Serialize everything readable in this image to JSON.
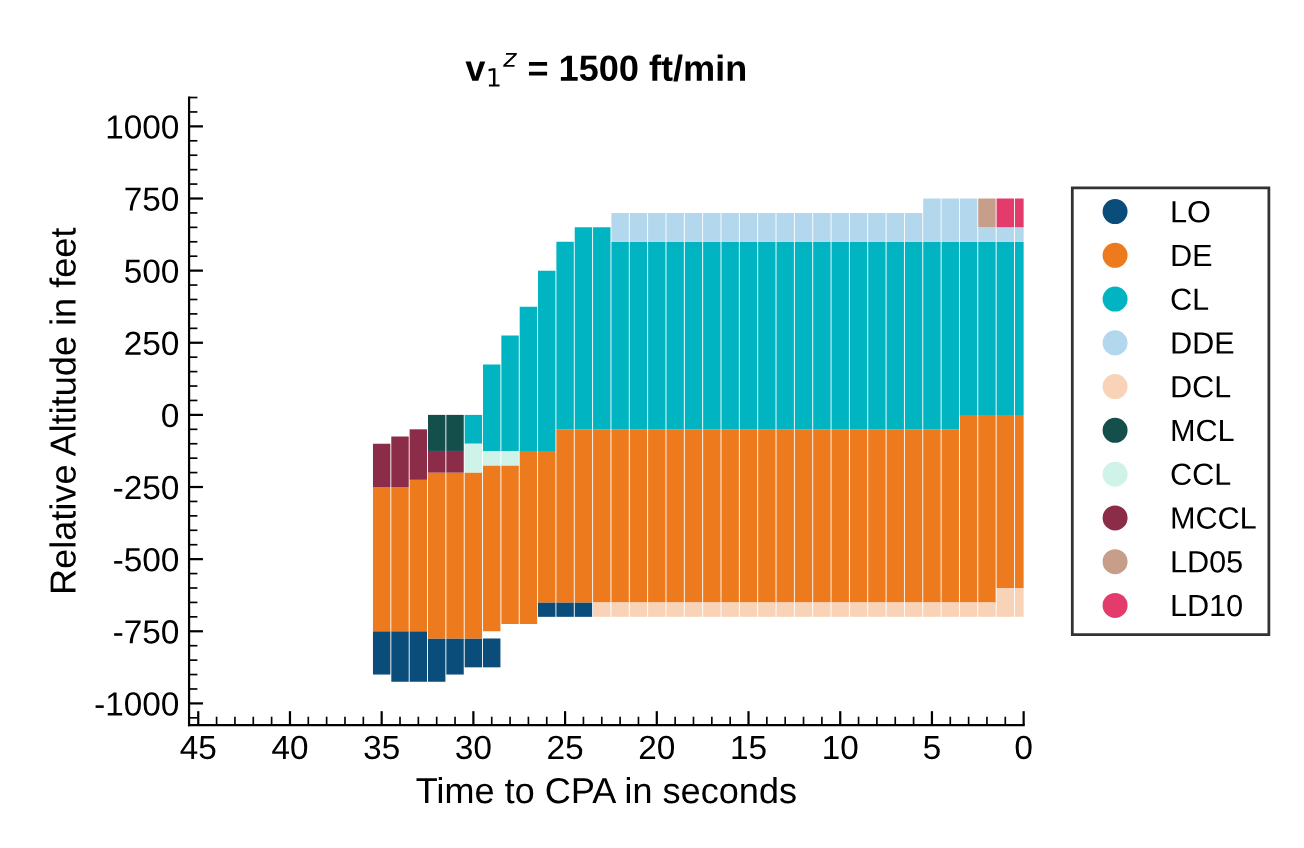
{
  "chart_data": {
    "type": "bar",
    "title": "v$_{1}$$^{z}$ = 1500 ft/min",
    "xlabel": "Time to CPA in seconds",
    "ylabel": "Relative Altitude in feet",
    "xlim": [
      45.5,
      0
    ],
    "xticks": [
      45,
      40,
      35,
      30,
      25,
      20,
      15,
      10,
      5,
      0
    ],
    "ylim": [
      -1075,
      1100
    ],
    "yticks": [
      -1000,
      -750,
      -500,
      -250,
      0,
      250,
      500,
      750,
      1000
    ],
    "grid": false,
    "legend": "right",
    "marker": "circle",
    "series": [
      {
        "name": "LO",
        "color": "#0a4d7a",
        "x": [
          35,
          34,
          33,
          32,
          31,
          30,
          29,
          26,
          25,
          24
        ],
        "base": [
          -900,
          -925,
          -925,
          -925,
          -900,
          -875,
          -875,
          -700,
          -700,
          -700
        ],
        "values": [
          150,
          175,
          175,
          150,
          125,
          100,
          100,
          50,
          50,
          50
        ]
      },
      {
        "name": "DE",
        "color": "#ee7a1e",
        "x": [
          35,
          34,
          33,
          32,
          31,
          30,
          29,
          28,
          27,
          26,
          25,
          24,
          23,
          22,
          21,
          20,
          19,
          18,
          17,
          16,
          15,
          14,
          13,
          12,
          11,
          10,
          9,
          8,
          7,
          6,
          5,
          4,
          3,
          2,
          1,
          0
        ],
        "base": [
          -750,
          -750,
          -750,
          -775,
          -775,
          -775,
          -750,
          -725,
          -725,
          -650,
          -650,
          -650,
          -650,
          -650,
          -650,
          -650,
          -650,
          -650,
          -650,
          -650,
          -650,
          -650,
          -650,
          -650,
          -650,
          -650,
          -650,
          -650,
          -650,
          -650,
          -650,
          -650,
          -650,
          -650,
          -600,
          -600
        ],
        "values": [
          500,
          500,
          525,
          575,
          575,
          575,
          575,
          550,
          600,
          525,
          600,
          600,
          600,
          600,
          600,
          600,
          600,
          600,
          600,
          600,
          600,
          600,
          600,
          600,
          600,
          600,
          600,
          600,
          600,
          600,
          600,
          600,
          650,
          650,
          600,
          600
        ]
      },
      {
        "name": "CL",
        "color": "#00b5c1",
        "x": [
          30,
          29,
          28,
          27,
          26,
          25,
          24,
          23,
          22,
          21,
          20,
          19,
          18,
          17,
          16,
          15,
          14,
          13,
          12,
          11,
          10,
          9,
          8,
          7,
          6,
          5,
          4,
          3,
          2,
          1,
          0
        ],
        "base": [
          -100,
          -125,
          -125,
          -125,
          -125,
          -50,
          -50,
          -50,
          -50,
          -50,
          -50,
          -50,
          -50,
          -50,
          -50,
          -50,
          -50,
          -50,
          -50,
          -50,
          -50,
          -50,
          -50,
          -50,
          -50,
          -50,
          -50,
          0,
          0,
          0,
          0
        ],
        "values": [
          100,
          300,
          400,
          500,
          625,
          650,
          700,
          700,
          650,
          650,
          650,
          650,
          650,
          650,
          650,
          650,
          650,
          650,
          650,
          650,
          650,
          650,
          650,
          650,
          650,
          650,
          650,
          600,
          600,
          600,
          600
        ]
      },
      {
        "name": "DDE",
        "color": "#b3d7ec",
        "x": [
          22,
          21,
          20,
          19,
          18,
          17,
          16,
          15,
          14,
          13,
          12,
          11,
          10,
          9,
          8,
          7,
          6,
          5,
          4,
          3,
          2,
          1,
          0
        ],
        "base": [
          600,
          600,
          600,
          600,
          600,
          600,
          600,
          600,
          600,
          600,
          600,
          600,
          600,
          600,
          600,
          600,
          600,
          600,
          600,
          600,
          600,
          600,
          600
        ],
        "values": [
          100,
          100,
          100,
          100,
          100,
          100,
          100,
          100,
          100,
          100,
          100,
          100,
          100,
          100,
          100,
          100,
          100,
          150,
          150,
          150,
          50,
          50,
          50
        ]
      },
      {
        "name": "DCL",
        "color": "#f8d3b8",
        "x": [
          23,
          22,
          21,
          20,
          19,
          18,
          17,
          16,
          15,
          14,
          13,
          12,
          11,
          10,
          9,
          8,
          7,
          6,
          5,
          4,
          3,
          2,
          1,
          0
        ],
        "base": [
          -700,
          -700,
          -700,
          -700,
          -700,
          -700,
          -700,
          -700,
          -700,
          -700,
          -700,
          -700,
          -700,
          -700,
          -700,
          -700,
          -700,
          -700,
          -700,
          -700,
          -700,
          -700,
          -700,
          -700
        ],
        "values": [
          50,
          50,
          50,
          50,
          50,
          50,
          50,
          50,
          50,
          50,
          50,
          50,
          50,
          50,
          50,
          50,
          50,
          50,
          50,
          50,
          50,
          50,
          100,
          100
        ]
      },
      {
        "name": "MCL",
        "color": "#154f4c",
        "x": [
          32,
          31
        ],
        "base": [
          -125,
          -125
        ],
        "values": [
          125,
          125
        ]
      },
      {
        "name": "CCL",
        "color": "#cff3e8",
        "x": [
          30,
          29,
          28
        ],
        "base": [
          -200,
          -175,
          -175
        ],
        "values": [
          100,
          50,
          50
        ]
      },
      {
        "name": "MCCL",
        "color": "#8b2c49",
        "x": [
          35,
          34,
          33,
          32,
          31
        ],
        "base": [
          -250,
          -250,
          -225,
          -200,
          -200
        ],
        "values": [
          150,
          175,
          175,
          75,
          75
        ]
      },
      {
        "name": "LD05",
        "color": "#c79e8a",
        "x": [
          2
        ],
        "base": [
          650
        ],
        "values": [
          100
        ]
      },
      {
        "name": "LD10",
        "color": "#e33b6b",
        "x": [
          1,
          0
        ],
        "base": [
          650,
          650
        ],
        "values": [
          100,
          100
        ]
      }
    ]
  }
}
